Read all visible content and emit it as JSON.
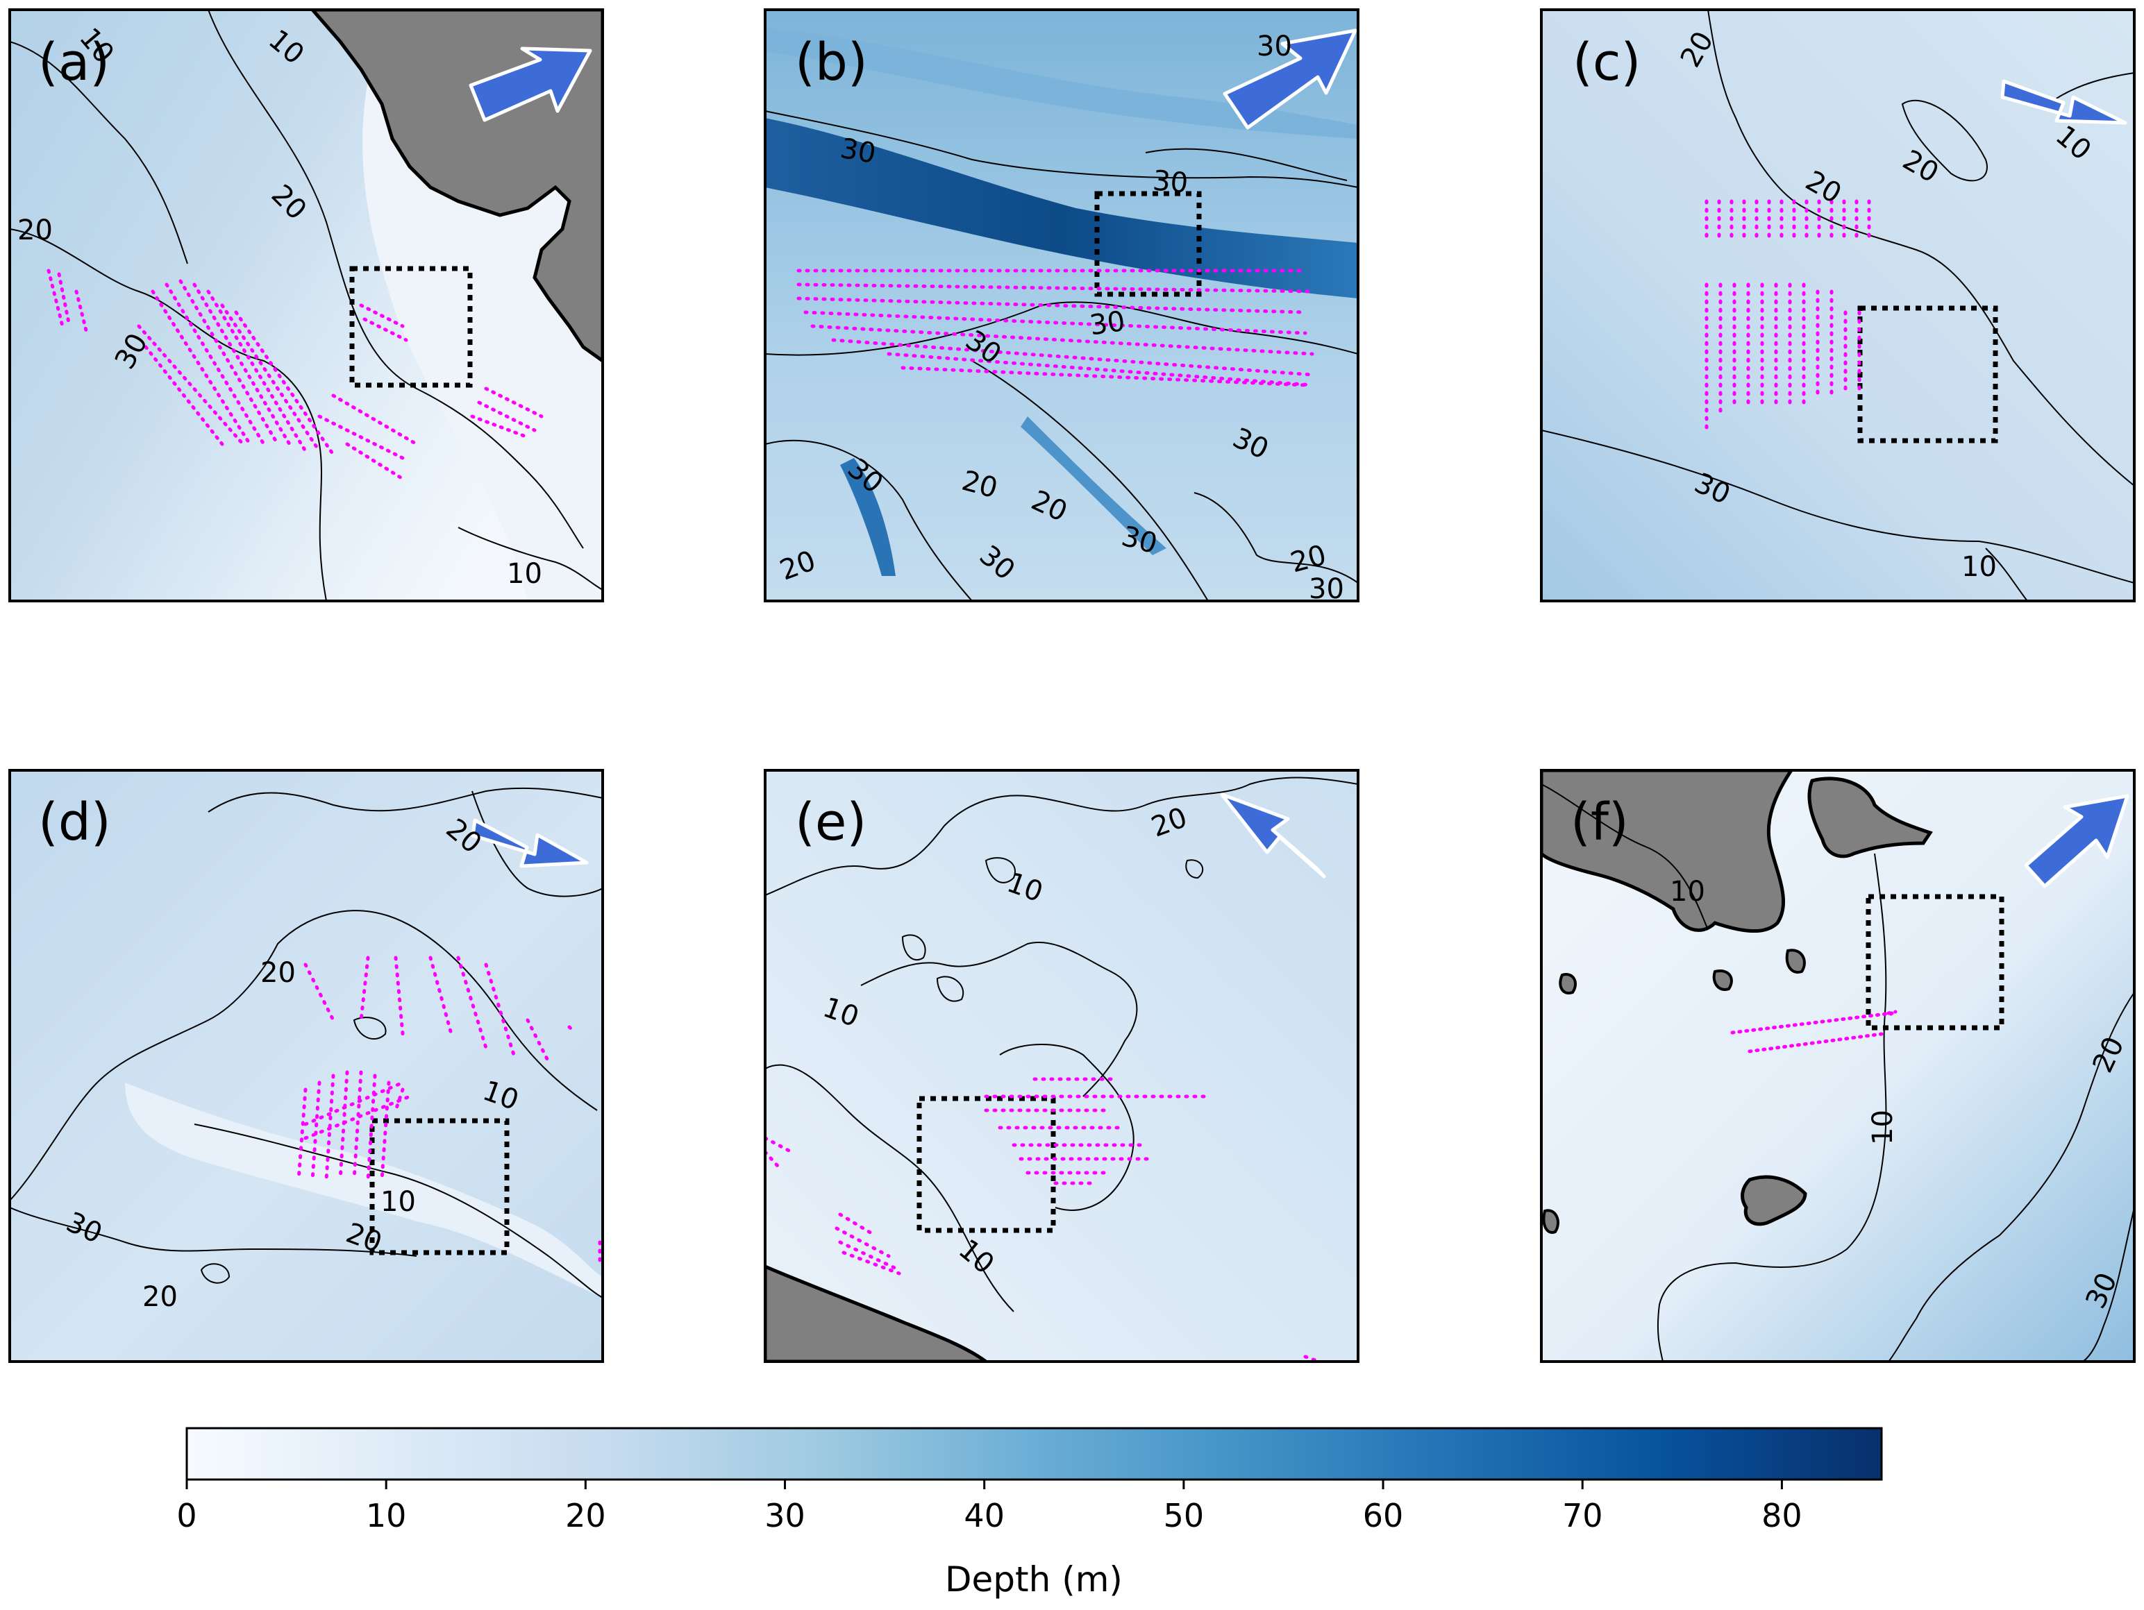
{
  "figure": {
    "colormap": "Blues",
    "colors": {
      "survey_points": "#ff00ff",
      "current_arrow": "#3d6cd8",
      "land": "#808080",
      "study_box": "#000000",
      "contour": "#000000"
    }
  },
  "panels": [
    {
      "id": "a",
      "label": "(a)",
      "arrow": "east-northeast",
      "contour_labels": [
        "10",
        "20",
        "20",
        "30",
        "10",
        "10"
      ]
    },
    {
      "id": "b",
      "label": "(b)",
      "arrow": "northeast",
      "contour_labels": [
        "30",
        "30",
        "30",
        "30",
        "30",
        "30",
        "20",
        "20",
        "30",
        "20",
        "30",
        "20",
        "30",
        "30"
      ]
    },
    {
      "id": "c",
      "label": "(c)",
      "arrow": "east-southeast",
      "contour_labels": [
        "20",
        "20",
        "20",
        "10",
        "30",
        "10"
      ]
    },
    {
      "id": "d",
      "label": "(d)",
      "arrow": "east-southeast",
      "contour_labels": [
        "20",
        "20",
        "10",
        "10",
        "20",
        "30",
        "20"
      ]
    },
    {
      "id": "e",
      "label": "(e)",
      "arrow": "northwest",
      "contour_labels": [
        "20",
        "10",
        "10",
        "10"
      ]
    },
    {
      "id": "f",
      "label": "(f)",
      "arrow": "northeast",
      "contour_labels": [
        "10",
        "10",
        "20",
        "30"
      ]
    }
  ],
  "colorbar": {
    "label": "Depth (m)",
    "min": 0,
    "max": 85,
    "ticks": [
      "0",
      "10",
      "20",
      "30",
      "40",
      "50",
      "60",
      "70",
      "80"
    ],
    "tick_values": [
      0,
      10,
      20,
      30,
      40,
      50,
      60,
      70,
      80
    ]
  }
}
